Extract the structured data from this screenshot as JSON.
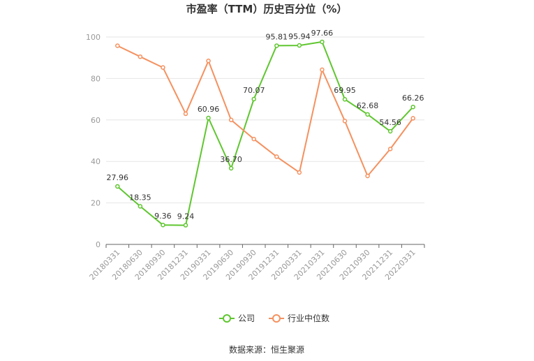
{
  "chart_data": {
    "type": "line",
    "title": "市盈率（TTM）历史百分位（%）",
    "categories": [
      "20180331",
      "20180630",
      "20180930",
      "20181231",
      "20190331",
      "20190630",
      "20190930",
      "20191231",
      "20200331",
      "20210331",
      "20210630",
      "20210930",
      "20211231",
      "20220331"
    ],
    "ylim": [
      0,
      100
    ],
    "yticks": [
      0,
      20,
      40,
      60,
      80,
      100
    ],
    "series": [
      {
        "name": "公司",
        "color": "#5fc62f",
        "values": [
          27.96,
          18.35,
          9.36,
          9.24,
          60.96,
          36.7,
          70.07,
          95.81,
          95.94,
          97.66,
          69.95,
          62.68,
          54.56,
          66.26
        ],
        "labels": [
          "27.96",
          "18.35",
          "9.36",
          "9.24",
          "60.96",
          "36.70",
          "70.07",
          "95.81",
          "95.94",
          "97.66",
          "69.95",
          "62.68",
          "54.56",
          "66.26"
        ]
      },
      {
        "name": "行业中位数",
        "color": "#f5915f",
        "values": [
          95.8,
          90.5,
          85.3,
          63.0,
          88.5,
          60.0,
          50.8,
          42.3,
          34.7,
          84.2,
          59.5,
          33.0,
          46.0,
          60.8
        ]
      }
    ],
    "legend_position": "bottom",
    "grid": true
  },
  "footer": {
    "source": "数据来源：恒生聚源"
  }
}
